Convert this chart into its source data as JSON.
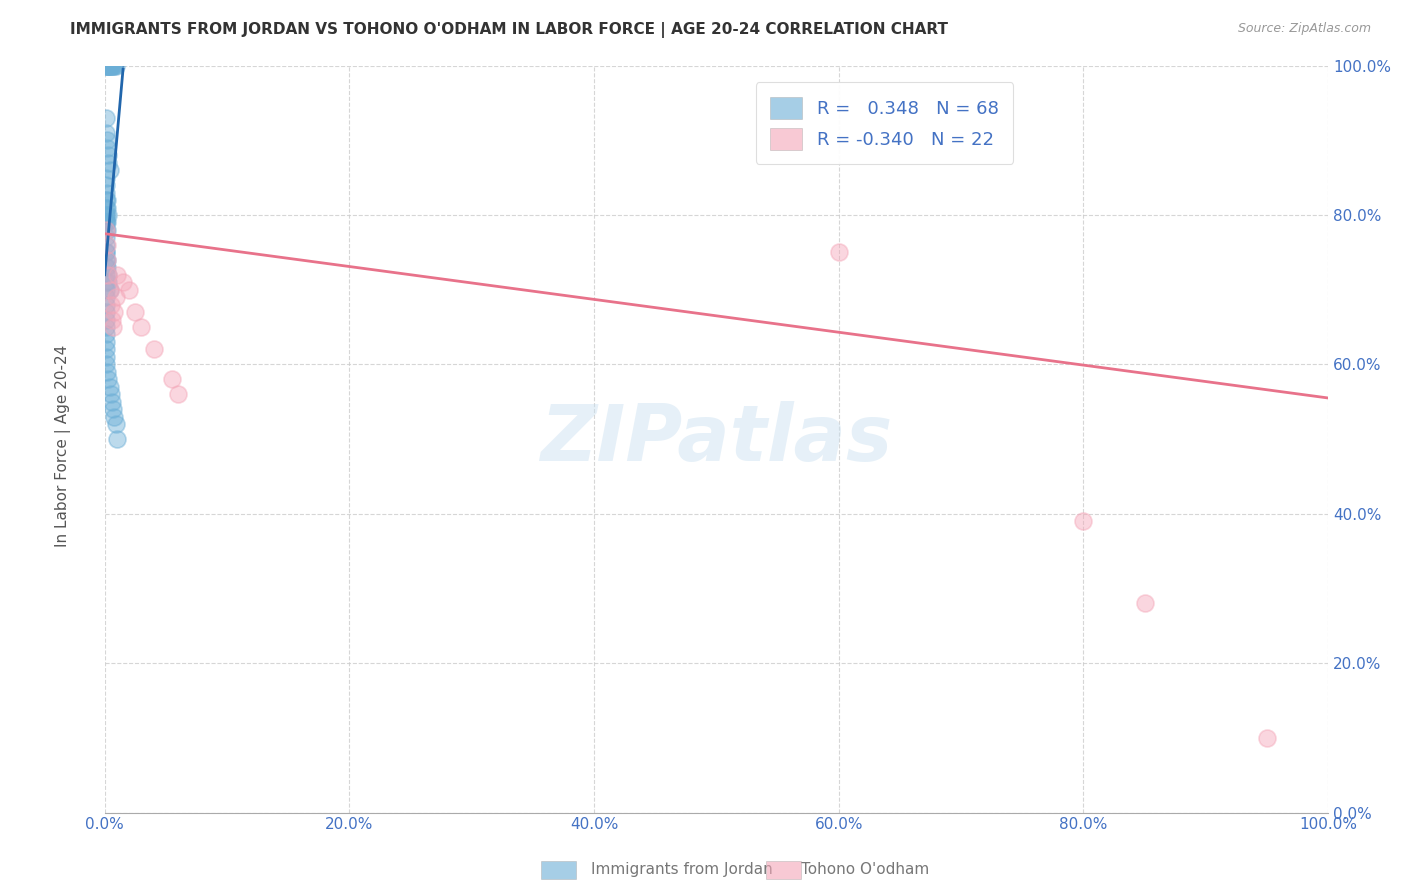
{
  "title": "IMMIGRANTS FROM JORDAN VS TOHONO O'ODHAM IN LABOR FORCE | AGE 20-24 CORRELATION CHART",
  "source": "Source: ZipAtlas.com",
  "ylabel": "In Labor Force | Age 20-24",
  "x_min": 0.0,
  "x_max": 1.0,
  "y_min": 0.0,
  "y_max": 1.0,
  "blue_R": 0.348,
  "blue_N": 68,
  "pink_R": -0.34,
  "pink_N": 22,
  "blue_color": "#6baed6",
  "pink_color": "#f4a6b8",
  "blue_line_color": "#2166ac",
  "pink_line_color": "#e8728a",
  "watermark": "ZIPatlas",
  "legend_label_blue": "Immigrants from Jordan",
  "legend_label_pink": "Tohono O'odham",
  "blue_scatter_x": [
    0.005,
    0.007,
    0.009,
    0.006,
    0.008,
    0.001,
    0.002,
    0.002,
    0.003,
    0.003,
    0.003,
    0.004,
    0.004,
    0.001,
    0.001,
    0.002,
    0.002,
    0.003,
    0.003,
    0.004,
    0.001,
    0.001,
    0.001,
    0.002,
    0.002,
    0.003,
    0.001,
    0.001,
    0.001,
    0.001,
    0.002,
    0.002,
    0.001,
    0.001,
    0.001,
    0.001,
    0.001,
    0.001,
    0.001,
    0.001,
    0.001,
    0.001,
    0.001,
    0.001,
    0.001,
    0.001,
    0.001,
    0.001,
    0.001,
    0.001,
    0.001,
    0.001,
    0.001,
    0.002,
    0.002,
    0.003,
    0.003,
    0.004,
    0.001,
    0.002,
    0.003,
    0.004,
    0.005,
    0.006,
    0.007,
    0.008,
    0.009,
    0.01
  ],
  "blue_scatter_y": [
    1.0,
    1.0,
    1.0,
    1.0,
    1.0,
    1.0,
    1.0,
    1.0,
    1.0,
    1.0,
    1.0,
    1.0,
    1.0,
    0.93,
    0.91,
    0.9,
    0.89,
    0.88,
    0.87,
    0.86,
    0.85,
    0.84,
    0.83,
    0.82,
    0.81,
    0.8,
    0.82,
    0.81,
    0.8,
    0.79,
    0.79,
    0.78,
    0.8,
    0.79,
    0.78,
    0.77,
    0.76,
    0.75,
    0.74,
    0.73,
    0.72,
    0.71,
    0.7,
    0.69,
    0.68,
    0.67,
    0.66,
    0.65,
    0.64,
    0.63,
    0.62,
    0.61,
    0.75,
    0.74,
    0.73,
    0.72,
    0.71,
    0.7,
    0.6,
    0.59,
    0.58,
    0.57,
    0.56,
    0.55,
    0.54,
    0.53,
    0.52,
    0.5
  ],
  "pink_scatter_x": [
    0.001,
    0.002,
    0.002,
    0.003,
    0.004,
    0.005,
    0.006,
    0.007,
    0.008,
    0.009,
    0.01,
    0.015,
    0.02,
    0.025,
    0.03,
    0.04,
    0.055,
    0.06,
    0.6,
    0.8,
    0.85,
    0.95
  ],
  "pink_scatter_y": [
    0.78,
    0.76,
    0.74,
    0.72,
    0.7,
    0.68,
    0.66,
    0.65,
    0.67,
    0.69,
    0.72,
    0.71,
    0.7,
    0.67,
    0.65,
    0.62,
    0.58,
    0.56,
    0.75,
    0.39,
    0.28,
    0.1
  ],
  "pink_trendline_x0": 0.0,
  "pink_trendline_y0": 0.775,
  "pink_trendline_x1": 1.0,
  "pink_trendline_y1": 0.555,
  "blue_trendline_x0": 0.0,
  "blue_trendline_y0": 0.72,
  "blue_trendline_x1": 0.015,
  "blue_trendline_y1": 0.995
}
